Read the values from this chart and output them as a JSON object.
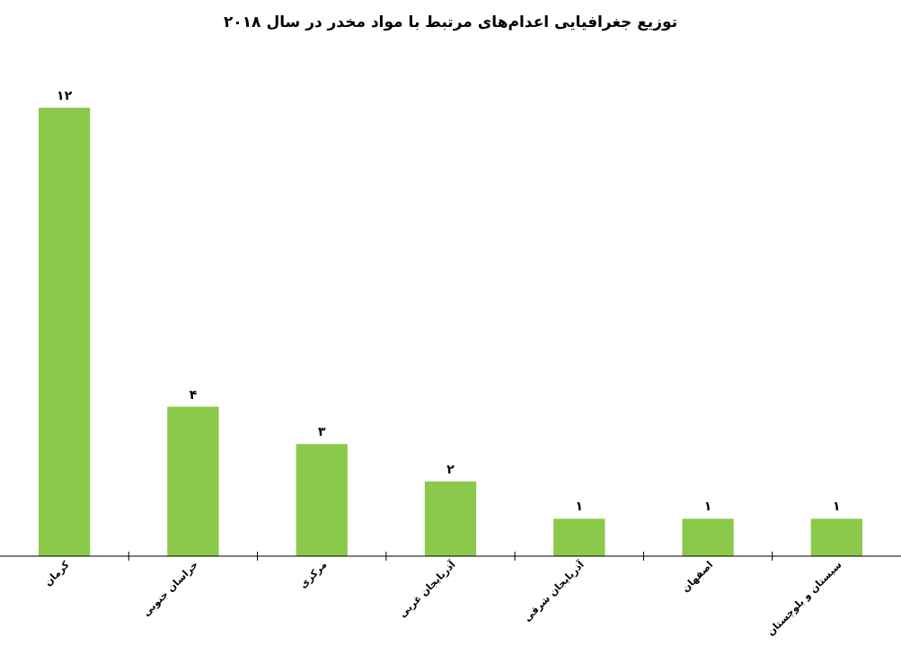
{
  "chart_data": {
    "type": "bar",
    "title": "توزیع جغرافیایی اعدام‌های مرتبط با مواد مخدر در سال ۲۰۱۸",
    "categories": [
      "کرمان",
      "خراسان جنوبی",
      "مرکزی",
      "آذربایجان غربی",
      "آذربایجان شرقی",
      "اصفهان",
      "سیستان و بلوچستان"
    ],
    "values": [
      12,
      4,
      3,
      2,
      1,
      1,
      1
    ],
    "value_labels": [
      "۱۲",
      "۴",
      "۳",
      "۲",
      "۱",
      "۱",
      "۱"
    ],
    "color": "#8bc94a"
  }
}
